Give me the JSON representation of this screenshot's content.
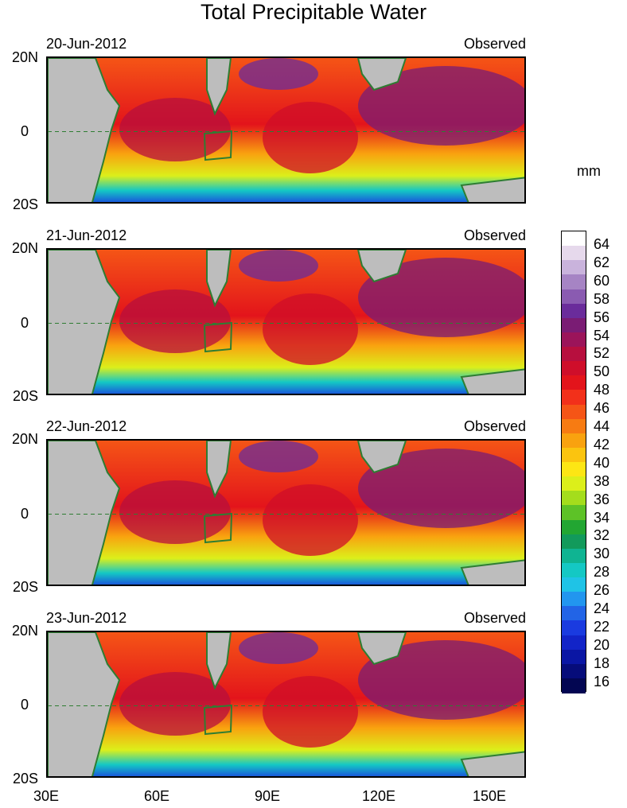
{
  "title": "Total Precipitable Water",
  "units": "mm",
  "panels": [
    {
      "date": "20-Jun-2012",
      "label": "Observed"
    },
    {
      "date": "21-Jun-2012",
      "label": "Observed"
    },
    {
      "date": "22-Jun-2012",
      "label": "Observed"
    },
    {
      "date": "23-Jun-2012",
      "label": "Observed"
    }
  ],
  "y_ticks": [
    "20N",
    "0",
    "20S"
  ],
  "x_ticks": [
    "30E",
    "60E",
    "90E",
    "120E",
    "150E"
  ],
  "colorbar": {
    "labels": [
      "64",
      "62",
      "60",
      "58",
      "56",
      "54",
      "52",
      "50",
      "48",
      "46",
      "44",
      "42",
      "40",
      "38",
      "36",
      "34",
      "32",
      "30",
      "28",
      "26",
      "24",
      "22",
      "20",
      "18",
      "16"
    ],
    "colors": [
      "#ffffff",
      "#e6d9ec",
      "#c9b3dc",
      "#a684c4",
      "#8a5bb1",
      "#6a2c9b",
      "#7a1c74",
      "#9b145a",
      "#b70f3e",
      "#cf0e2a",
      "#e3141b",
      "#f2301a",
      "#f55516",
      "#f77b12",
      "#f9a20f",
      "#fbc40f",
      "#fde614",
      "#dcef1a",
      "#a4dd1c",
      "#5dc227",
      "#22a632",
      "#129a5b",
      "#0fb492",
      "#14c8c4",
      "#1fc3e6",
      "#2296ef",
      "#2264e6",
      "#1a3be0",
      "#1224c8",
      "#0a16a4",
      "#060c7a",
      "#030652"
    ]
  },
  "region_box": "dashed equator line and target box near 73E-80E",
  "colors": {
    "land": "#bdbdbd",
    "coast": "#2e7d32",
    "frame": "#000000"
  }
}
